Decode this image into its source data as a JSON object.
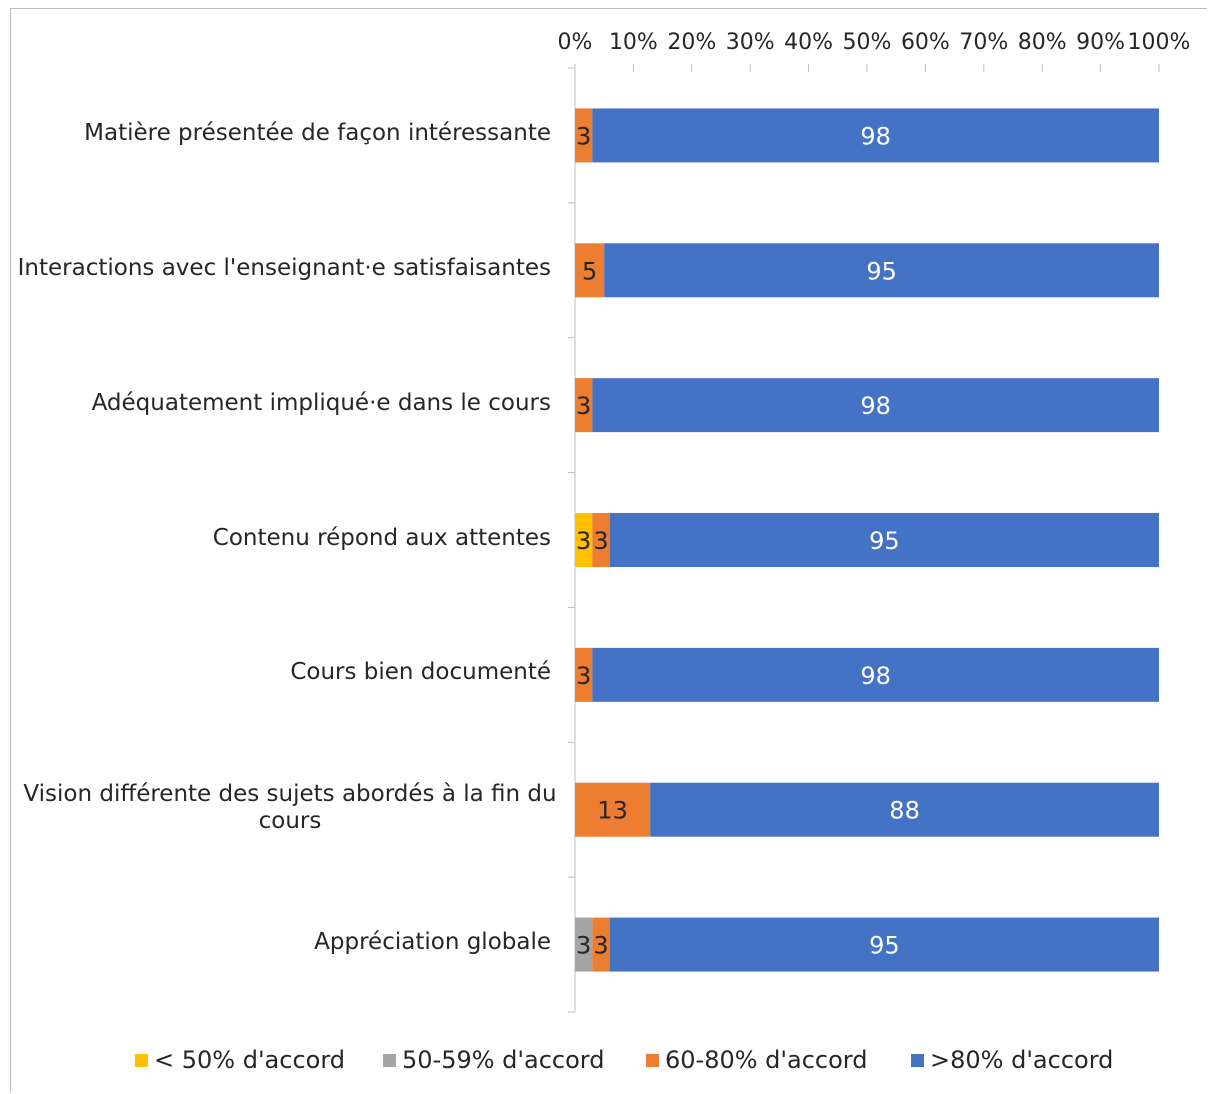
{
  "chart_data": {
    "type": "bar",
    "orientation": "horizontal",
    "stacked": "percent",
    "categories": [
      "Matière présentée de façon intéressante",
      "Interactions avec l'enseignant·e satisfaisantes",
      "Adéquatement impliqué·e dans le cours",
      "Contenu répond aux attentes",
      "Cours bien documenté",
      "Vision différente des sujets abordés à la fin du cours",
      "Appréciation globale"
    ],
    "category_lines": [
      [
        "Matière présentée de façon intéressante"
      ],
      [
        "Interactions avec l'enseignant·e satisfaisantes"
      ],
      [
        "Adéquatement impliqué·e dans le cours"
      ],
      [
        "Contenu répond aux attentes"
      ],
      [
        "Cours bien documenté"
      ],
      [
        "Vision différente des sujets abordés à la fin du",
        "cours"
      ],
      [
        "Appréciation globale"
      ]
    ],
    "series": [
      {
        "name": "< 50% d'accord",
        "color": "#ffc000",
        "values": [
          0,
          0,
          0,
          3,
          0,
          0,
          0
        ],
        "label_color": "#262626"
      },
      {
        "name": "50-59% d'accord",
        "color": "#a5a5a5",
        "values": [
          0,
          0,
          0,
          0,
          0,
          0,
          3
        ],
        "label_color": "#262626"
      },
      {
        "name": "60-80% d'accord",
        "color": "#ed7d31",
        "values": [
          3,
          5,
          3,
          3,
          3,
          13,
          3
        ],
        "label_color": "#262626"
      },
      {
        "name": ">80% d'accord",
        "color": "#4472c4",
        "values": [
          98,
          95,
          98,
          95,
          98,
          88,
          95
        ],
        "label_color": "#ffffff"
      }
    ],
    "x_ticks": [
      "0%",
      "10%",
      "20%",
      "30%",
      "40%",
      "50%",
      "60%",
      "70%",
      "80%",
      "90%",
      "100%"
    ],
    "xlim": [
      0,
      100
    ],
    "x_axis_position": "top",
    "grid": false,
    "legend_position": "bottom"
  }
}
